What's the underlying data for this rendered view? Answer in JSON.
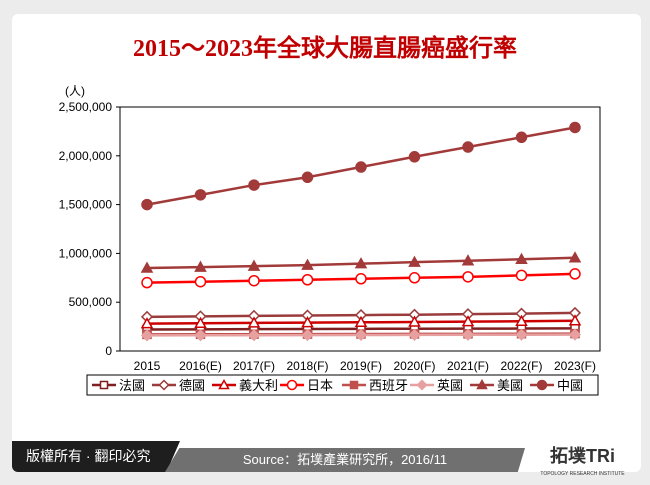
{
  "title": "2015～2023年全球大腸直腸癌盛行率",
  "footer": {
    "copyright": "版權所有 · 翻印必究",
    "source": "Source：拓墣產業研究所，2016/11",
    "logo": "拓墣TRi",
    "logo_sub": "TOPOLOGY RESEARCH INSTITUTE"
  },
  "chart_data": {
    "type": "line",
    "title": "2015～2023年全球大腸直腸癌盛行率",
    "ylabel": "(人)",
    "ylim": [
      0,
      2500000
    ],
    "yticks": [
      0,
      500000,
      1000000,
      1500000,
      2000000,
      2500000
    ],
    "ytick_labels": [
      "0",
      "500,000",
      "1,000,000",
      "1,500,000",
      "2,000,000",
      "2,500,000"
    ],
    "categories": [
      "2015",
      "2016(E)",
      "2017(F)",
      "2018(F)",
      "2019(F)",
      "2020(F)",
      "2021(F)",
      "2022(F)",
      "2023(F)"
    ],
    "legend": "bottom",
    "grid": false,
    "series": [
      {
        "name": "法國",
        "color": "#7f1f1f",
        "marker": "square-open",
        "values": [
          220000,
          222000,
          224000,
          226000,
          227000,
          228000,
          229000,
          230000,
          232000
        ]
      },
      {
        "name": "德國",
        "color": "#9b3b3b",
        "marker": "diamond-open",
        "values": [
          350000,
          355000,
          360000,
          364000,
          368000,
          372000,
          378000,
          383000,
          390000
        ]
      },
      {
        "name": "義大利",
        "color": "#cc0000",
        "marker": "triangle-open",
        "values": [
          280000,
          284000,
          288000,
          291000,
          294000,
          297000,
          301000,
          305000,
          310000
        ]
      },
      {
        "name": "日本",
        "color": "#ff0000",
        "marker": "circle-open",
        "values": [
          700000,
          710000,
          720000,
          730000,
          740000,
          750000,
          760000,
          775000,
          790000
        ]
      },
      {
        "name": "西班牙",
        "color": "#c0504d",
        "marker": "square",
        "values": [
          170000,
          171000,
          172000,
          173000,
          174000,
          175000,
          176000,
          177000,
          178000
        ]
      },
      {
        "name": "英國",
        "color": "#e6a0a0",
        "marker": "diamond",
        "values": [
          160000,
          161000,
          162000,
          163000,
          164000,
          165000,
          166000,
          167000,
          168000
        ]
      },
      {
        "name": "美國",
        "color": "#a33a3a",
        "marker": "triangle",
        "values": [
          850000,
          860000,
          870000,
          880000,
          895000,
          910000,
          925000,
          940000,
          955000
        ]
      },
      {
        "name": "中國",
        "color": "#a33a3a",
        "marker": "circle",
        "values": [
          1500000,
          1600000,
          1700000,
          1780000,
          1885000,
          1990000,
          2090000,
          2190000,
          2290000
        ]
      }
    ]
  }
}
